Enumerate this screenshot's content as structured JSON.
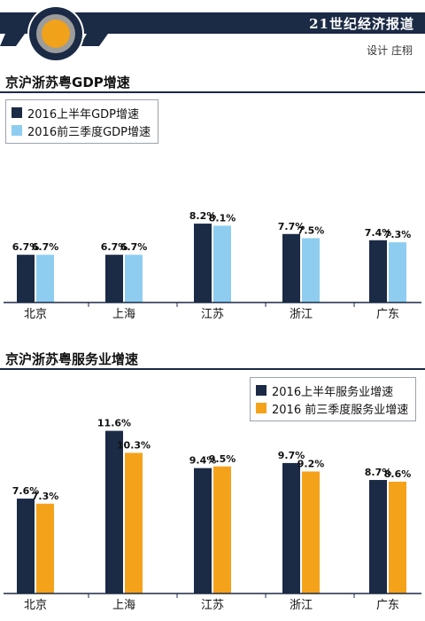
{
  "header": {
    "paper_name": "21世纪经济报道",
    "designer": "设计 庄栩"
  },
  "colors": {
    "navy": "#1b2a45",
    "light_blue": "#8ecdf0",
    "orange": "#f5a21b",
    "logo_orange": "#f0a21a",
    "logo_gray": "#9c9c9c"
  },
  "chart_data": [
    {
      "type": "bar",
      "title": "京沪浙苏粤GDP增速",
      "categories": [
        "北京",
        "上海",
        "江苏",
        "浙江",
        "广东"
      ],
      "series": [
        {
          "name": "2016上半年GDP增速",
          "values": [
            6.7,
            6.7,
            8.2,
            7.7,
            7.4
          ],
          "labels": [
            "6.7%",
            "6.7%",
            "8.2%",
            "7.7%",
            "7.4%"
          ]
        },
        {
          "name": "2016前三季度GDP增速",
          "values": [
            6.7,
            6.7,
            8.1,
            7.5,
            7.3
          ],
          "labels": [
            "6.7%",
            "6.7%",
            "8.1%",
            "7.5%",
            "7.3%"
          ]
        }
      ],
      "legend_position": "top-left",
      "grid": false
    },
    {
      "type": "bar",
      "title": "京沪浙苏粤服务业增速",
      "categories": [
        "北京",
        "上海",
        "江苏",
        "浙江",
        "广东"
      ],
      "series": [
        {
          "name": "2016上半年服务业增速",
          "values": [
            7.6,
            11.6,
            9.4,
            9.7,
            8.7
          ],
          "labels": [
            "7.6%",
            "11.6%",
            "9.4%",
            "9.7%",
            "8.7%"
          ]
        },
        {
          "name": "2016 前三季度服务业增速",
          "values": [
            7.3,
            10.3,
            9.5,
            9.2,
            8.6
          ],
          "labels": [
            "7.3%",
            "10.3%",
            "9.5%",
            "9.2%",
            "8.6%"
          ]
        }
      ],
      "legend_position": "top-right",
      "grid": false
    }
  ]
}
